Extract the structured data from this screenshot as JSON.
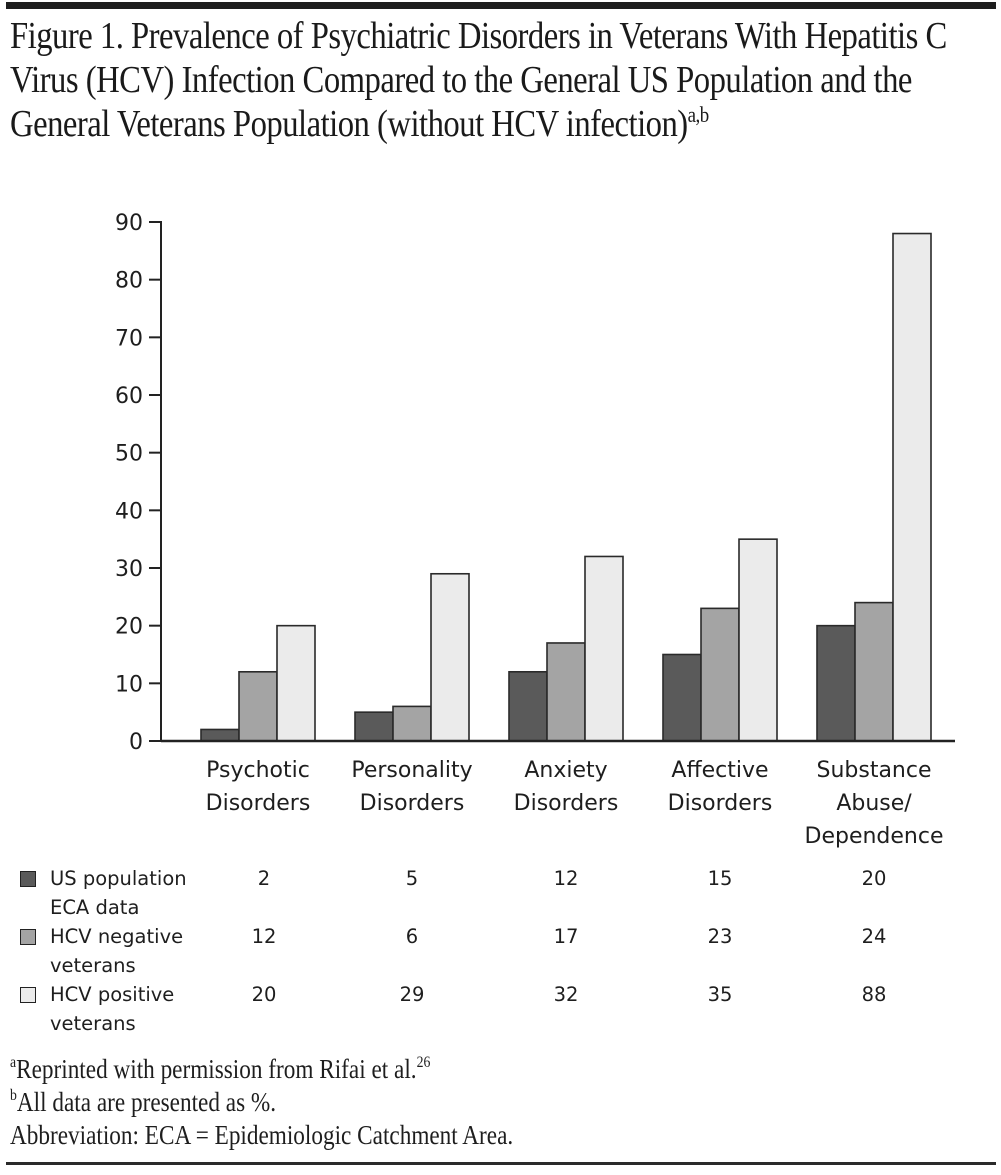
{
  "figure": {
    "title": "Figure 1. Prevalence of Psychiatric Disorders in Veterans With Hepatitis C Virus (HCV) Infection Compared to the General US Population and the General Veterans Population (without HCV infection)",
    "title_superscript": "a,b",
    "footnotes": [
      {
        "marker": "a",
        "text": "Reprinted with permission from Rifai et al.",
        "ref": "26"
      },
      {
        "marker": "b",
        "text": "All data are presented as %.",
        "ref": ""
      },
      {
        "marker": "",
        "text": "Abbreviation: ECA = Epidemiologic Catchment Area.",
        "ref": ""
      }
    ]
  },
  "chart_data": {
    "type": "bar",
    "title": "Prevalence of Psychiatric Disorders in Veterans With Hepatitis C Virus (HCV) Infection Compared to the General US Population and the General Veterans Population (without HCV infection)",
    "xlabel": "",
    "ylabel": "",
    "ylim": [
      0,
      90
    ],
    "yticks": [
      0,
      10,
      20,
      30,
      40,
      50,
      60,
      70,
      80,
      90
    ],
    "grid": false,
    "legend_position": "bottom-left (data table)",
    "categories": [
      [
        "Psychotic",
        "Disorders"
      ],
      [
        "Personality",
        "Disorders"
      ],
      [
        "Anxiety",
        "Disorders"
      ],
      [
        "Affective",
        "Disorders"
      ],
      [
        "Substance",
        "Abuse/",
        "Dependence"
      ]
    ],
    "series": [
      {
        "name": "US population ECA data",
        "label_lines": [
          "US population",
          "ECA data"
        ],
        "color": "#5a5a5a",
        "values": [
          2,
          5,
          12,
          15,
          20
        ]
      },
      {
        "name": "HCV negative veterans",
        "label_lines": [
          "HCV negative",
          "veterans"
        ],
        "color": "#a4a4a4",
        "values": [
          12,
          6,
          17,
          23,
          24
        ]
      },
      {
        "name": "HCV positive veterans",
        "label_lines": [
          "HCV positive",
          "veterans"
        ],
        "color": "#ebebeb",
        "values": [
          20,
          29,
          32,
          35,
          88
        ]
      }
    ]
  }
}
